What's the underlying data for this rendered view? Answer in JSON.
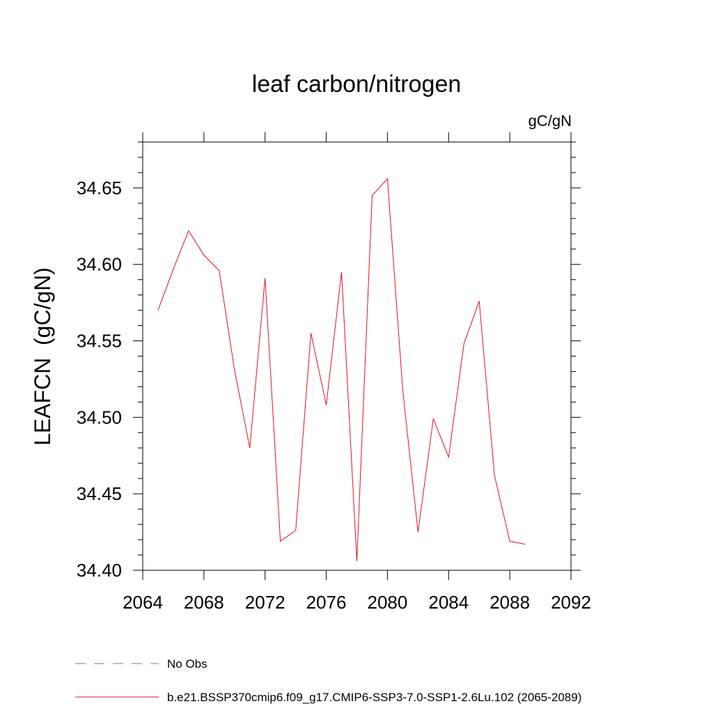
{
  "chart_data": {
    "type": "line",
    "title": "leaf carbon/nitrogen",
    "units_label": "gC/gN",
    "ylabel": "LEAFCN  (gC/gN)",
    "xlabel": "",
    "xlim": [
      2064,
      2092
    ],
    "ylim": [
      34.4,
      34.68
    ],
    "xticks": [
      "2064",
      "2068",
      "2072",
      "2076",
      "2080",
      "2084",
      "2088",
      "2092"
    ],
    "yticks": [
      "34.40",
      "34.45",
      "34.50",
      "34.55",
      "34.60",
      "34.65"
    ],
    "x": [
      2065,
      2066,
      2067,
      2068,
      2069,
      2070,
      2071,
      2072,
      2073,
      2074,
      2075,
      2076,
      2077,
      2078,
      2079,
      2080,
      2081,
      2082,
      2083,
      2084,
      2085,
      2086,
      2087,
      2088,
      2089
    ],
    "series": [
      {
        "name": "b.e21.BSSP370cmip6.f09_g17.CMIP6-SSP3-7.0-SSP1-2.6Lu.102 (2065-2089)",
        "color": "#e8101a",
        "values": [
          34.57,
          34.597,
          34.622,
          34.606,
          34.596,
          34.531,
          34.48,
          34.591,
          34.419,
          34.426,
          34.555,
          34.508,
          34.595,
          34.406,
          34.645,
          34.656,
          34.518,
          34.425,
          34.499,
          34.474,
          34.548,
          34.576,
          34.462,
          34.419,
          34.417
        ]
      }
    ],
    "legend": [
      {
        "label": "No Obs",
        "color": "#7b6fb8",
        "style": "dashed"
      },
      {
        "label": "b.e21.BSSP370cmip6.f09_g17.CMIP6-SSP3-7.0-SSP1-2.6Lu.102 (2065-2089)",
        "color": "#e8101a",
        "style": "solid"
      }
    ],
    "legend_position": "bottom-left",
    "grid": false
  }
}
